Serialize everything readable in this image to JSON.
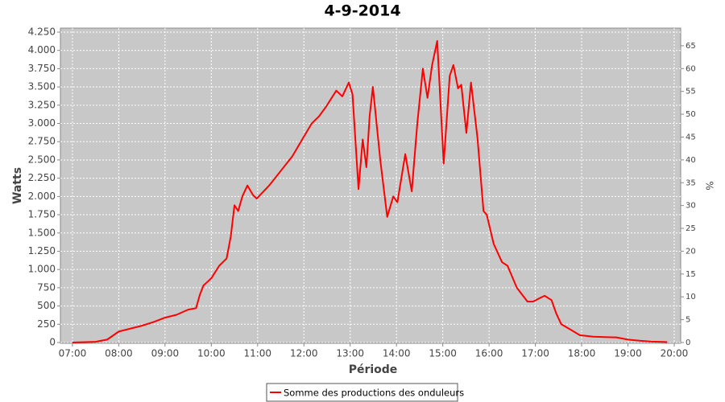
{
  "chart_data": {
    "type": "line",
    "title": "4-9-2014",
    "x_label": "Période",
    "y_label": "Watts",
    "y2_label": "%",
    "xlim": [
      6.74,
      20.14
    ],
    "xticks": [
      {
        "value": 7,
        "label": "07:00"
      },
      {
        "value": 8,
        "label": "08:00"
      },
      {
        "value": 9,
        "label": "09:00"
      },
      {
        "value": 10,
        "label": "10:00"
      },
      {
        "value": 11,
        "label": "11:00"
      },
      {
        "value": 12,
        "label": "12:00"
      },
      {
        "value": 13,
        "label": "13:00"
      },
      {
        "value": 14,
        "label": "14:00"
      },
      {
        "value": 15,
        "label": "15:00"
      },
      {
        "value": 16,
        "label": "16:00"
      },
      {
        "value": 17,
        "label": "17:00"
      },
      {
        "value": 18,
        "label": "18:00"
      },
      {
        "value": 19,
        "label": "19:00"
      },
      {
        "value": 20,
        "label": "20:00"
      }
    ],
    "ylim": [
      -11,
      4305
    ],
    "yticks": [
      0,
      250,
      500,
      750,
      {
        "value": 1000,
        "label": "1.000"
      },
      {
        "value": 1250,
        "label": "1.250"
      },
      {
        "value": 1500,
        "label": "1.500"
      },
      {
        "value": 1750,
        "label": "1.750"
      },
      {
        "value": 2000,
        "label": "2.000"
      },
      {
        "value": 2250,
        "label": "2.250"
      },
      {
        "value": 2500,
        "label": "2.500"
      },
      {
        "value": 2750,
        "label": "2.750"
      },
      {
        "value": 3000,
        "label": "3.000"
      },
      {
        "value": 3250,
        "label": "3.250"
      },
      {
        "value": 3500,
        "label": "3.500"
      },
      {
        "value": 3750,
        "label": "3.750"
      },
      {
        "value": 4000,
        "label": "4.000"
      },
      {
        "value": 4250,
        "label": "4.250"
      }
    ],
    "y2lim": [
      -0.18,
      68.86
    ],
    "y2ticks": [
      0,
      5,
      10,
      15,
      20,
      25,
      30,
      35,
      40,
      45,
      50,
      55,
      60,
      65
    ],
    "grid": true,
    "legend": "bottom",
    "x": [
      7.0,
      7.5,
      7.75,
      8.0,
      8.25,
      8.5,
      8.75,
      9.0,
      9.25,
      9.5,
      9.67,
      9.75,
      9.83,
      10.0,
      10.17,
      10.25,
      10.33,
      10.42,
      10.5,
      10.58,
      10.67,
      10.78,
      10.9,
      10.98,
      11.25,
      11.5,
      11.75,
      12.0,
      12.17,
      12.33,
      12.48,
      12.7,
      12.83,
      12.97,
      13.05,
      13.18,
      13.27,
      13.35,
      13.42,
      13.49,
      13.65,
      13.8,
      13.93,
      14.02,
      14.19,
      14.33,
      14.45,
      14.57,
      14.67,
      14.77,
      14.88,
      15.02,
      15.15,
      15.23,
      15.33,
      15.4,
      15.51,
      15.61,
      15.75,
      15.88,
      15.95,
      16.1,
      16.28,
      16.4,
      16.6,
      16.83,
      16.95,
      17.1,
      17.2,
      17.35,
      17.45,
      17.56,
      17.75,
      17.96,
      18.25,
      18.5,
      18.75,
      19.0,
      19.25,
      19.5,
      19.75,
      19.85
    ],
    "series": [
      {
        "name": "Somme des productions des onduleurs",
        "color": "#ff0000",
        "values": [
          0,
          10,
          40,
          150,
          190,
          230,
          280,
          340,
          380,
          450,
          470,
          650,
          780,
          880,
          1050,
          1100,
          1150,
          1450,
          1880,
          1800,
          2000,
          2150,
          2020,
          1970,
          2150,
          2350,
          2550,
          2820,
          3000,
          3100,
          3230,
          3450,
          3370,
          3560,
          3400,
          2100,
          2780,
          2400,
          3100,
          3500,
          2500,
          1720,
          2000,
          1920,
          2580,
          2070,
          3000,
          3750,
          3350,
          3800,
          4130,
          2450,
          3650,
          3800,
          3480,
          3530,
          2870,
          3560,
          2800,
          1800,
          1750,
          1350,
          1100,
          1050,
          750,
          560,
          560,
          610,
          640,
          580,
          400,
          250,
          180,
          100,
          80,
          75,
          70,
          40,
          25,
          12,
          8,
          5
        ]
      }
    ]
  }
}
